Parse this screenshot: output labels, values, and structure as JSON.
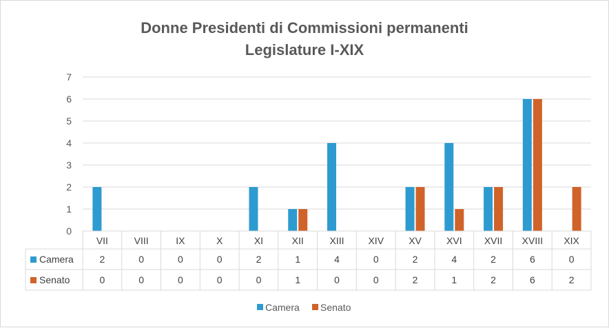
{
  "chart_data": {
    "type": "bar",
    "title": "Donne Presidenti di Commissioni permanenti",
    "subtitle": "Legislature I-XIX",
    "categories": [
      "VII",
      "VIII",
      "IX",
      "X",
      "XI",
      "XII",
      "XIII",
      "XIV",
      "XV",
      "XVI",
      "XVII",
      "XVIII",
      "XIX"
    ],
    "series": [
      {
        "name": "Camera",
        "color": "#2e9bd0",
        "values": [
          2,
          0,
          0,
          0,
          2,
          1,
          4,
          0,
          2,
          4,
          2,
          6,
          0
        ]
      },
      {
        "name": "Senato",
        "color": "#d0632a",
        "values": [
          0,
          0,
          0,
          0,
          0,
          1,
          0,
          0,
          2,
          1,
          2,
          6,
          2
        ]
      }
    ],
    "ylim": [
      0,
      7
    ],
    "yticks": [
      0,
      1,
      2,
      3,
      4,
      5,
      6,
      7
    ],
    "grid": true,
    "data_table": true,
    "legend_position": "bottom"
  }
}
